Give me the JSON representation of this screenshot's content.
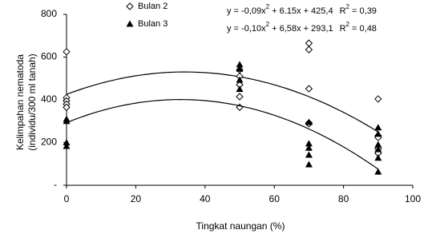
{
  "chart_data": {
    "type": "scatter",
    "x_label": "Tingkat naungan (%)",
    "y_label": [
      "Kelimpahan nematoda",
      "(individu/300 ml tanah)"
    ],
    "xlim": [
      0,
      100
    ],
    "xticks": [
      0,
      20,
      40,
      60,
      80,
      100
    ],
    "ylim": [
      0,
      800
    ],
    "yticks": [
      {
        "value": 0,
        "label": "-"
      },
      200,
      400,
      600,
      800
    ],
    "series": [
      {
        "name": "Bulan 2",
        "marker": "diamond",
        "color": "#000000",
        "x": [
          0,
          0,
          0,
          0,
          0,
          50,
          50,
          50,
          50,
          50,
          70,
          70,
          70,
          70,
          70,
          90,
          90,
          90,
          90,
          90
        ],
        "values": [
          625,
          410,
          395,
          380,
          365,
          540,
          510,
          470,
          415,
          365,
          665,
          635,
          452,
          292,
          288,
          404,
          232,
          224,
          172,
          150
        ],
        "trendline": {
          "coefficients": [
            -0.09,
            6.15,
            425.4
          ]
        },
        "equation": [
          "y = -0,09x",
          "2",
          " + 6.15x + 425,4",
          "R",
          "2",
          " = 0,39"
        ]
      },
      {
        "name": "Bulan 3",
        "marker": "triangle",
        "color": "#000000",
        "x": [
          0,
          0,
          0,
          0,
          50,
          50,
          50,
          50,
          70,
          70,
          70,
          70,
          70,
          90,
          90,
          90,
          90,
          90,
          90
        ],
        "values": [
          310,
          300,
          200,
          183,
          565,
          545,
          493,
          450,
          295,
          195,
          175,
          142,
          97,
          270,
          240,
          190,
          168,
          128,
          63
        ],
        "trendline": {
          "coefficients": [
            -0.1,
            6.58,
            293.1
          ]
        },
        "equation": [
          "y = -0,10x",
          "2",
          " + 6,58x + 293,1",
          "R",
          "2",
          " = 0,48"
        ]
      }
    ]
  }
}
